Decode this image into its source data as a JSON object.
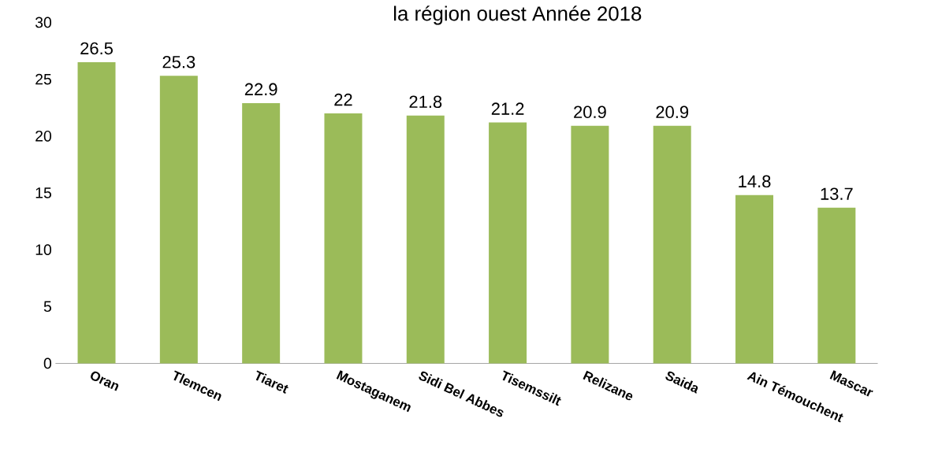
{
  "chart_data": {
    "type": "bar",
    "title": "la région ouest Année 2018",
    "categories": [
      "Oran",
      "Tlemcen",
      "Tiaret",
      "Mostaganem",
      "Sidi Bel Abbes",
      "Tisemssilt",
      "Relizane",
      "Saida",
      "Ain Témouchent",
      "Mascar"
    ],
    "values": [
      26.5,
      25.3,
      22.9,
      22,
      21.8,
      21.2,
      20.9,
      20.9,
      14.8,
      13.7
    ],
    "color": "#9bbb59",
    "ylim": [
      0,
      30
    ],
    "yticks": [
      0,
      5,
      10,
      15,
      20,
      25,
      30
    ],
    "data_labels": true
  }
}
